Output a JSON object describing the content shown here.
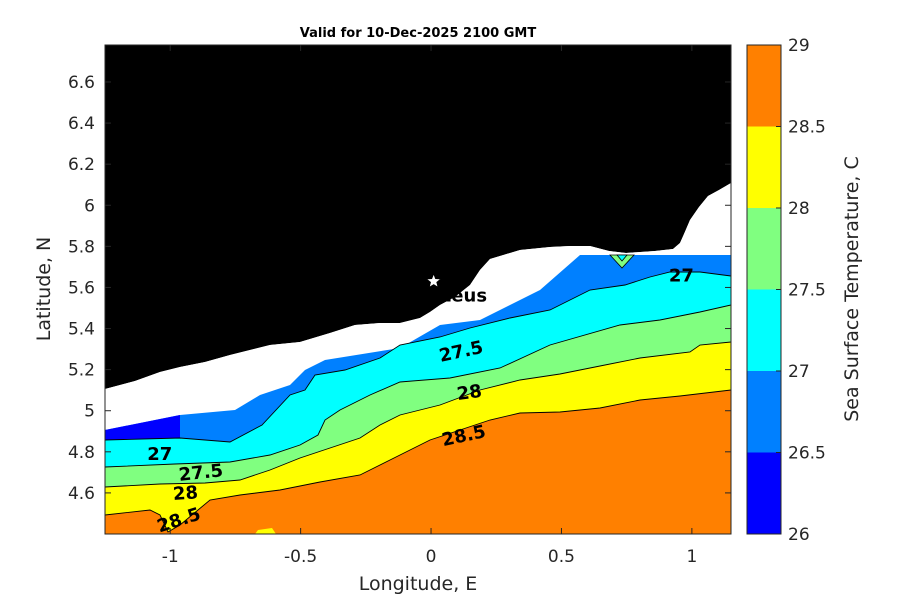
{
  "chart_data": {
    "type": "contour",
    "title": "Valid for 10-Dec-2025 2100 GMT",
    "xlabel": "Longitude, E",
    "ylabel": "Latitude, N",
    "colorbar_label": "Sea Surface Temperature, C",
    "xlim": [
      -1.25,
      1.15
    ],
    "ylim": [
      4.4,
      6.78
    ],
    "xticks": [
      -1,
      -0.5,
      0,
      0.5,
      1
    ],
    "xtick_labels": [
      "-1",
      "-0.5",
      "0",
      "0.5",
      "1"
    ],
    "yticks": [
      4.6,
      4.8,
      5,
      5.2,
      5.4,
      5.6,
      5.8,
      6,
      6.2,
      6.4,
      6.6
    ],
    "ytick_labels": [
      "4.6",
      "4.8",
      "5",
      "5.2",
      "5.4",
      "5.6",
      "5.8",
      "6",
      "6.2",
      "6.4",
      "6.6"
    ],
    "colorbar_range": [
      26,
      29
    ],
    "colorbar_ticks": [
      26,
      26.5,
      27,
      27.5,
      28,
      28.5,
      29
    ],
    "colorbar_tick_labels": [
      "26",
      "26.5",
      "27",
      "27.5",
      "28",
      "28.5",
      "29"
    ],
    "levels": [
      {
        "min": 26,
        "max": 26.5,
        "color": "#0000ff"
      },
      {
        "min": 26.5,
        "max": 27,
        "color": "#0080ff"
      },
      {
        "min": 27,
        "max": 27.5,
        "color": "#00ffff"
      },
      {
        "min": 27.5,
        "max": 28,
        "color": "#80ff80"
      },
      {
        "min": 28,
        "max": 28.5,
        "color": "#ffff00"
      },
      {
        "min": 28.5,
        "max": 29,
        "color": "#ff8000"
      }
    ],
    "land_color": "#000000",
    "nodata_color": "#ffffff",
    "station": {
      "name": "Proteus",
      "lon": 0.01,
      "lat": 5.63,
      "marker": "star"
    },
    "contour_labels": [
      {
        "text": "27",
        "lon": -1.04,
        "lat": 4.76,
        "angle": 0
      },
      {
        "text": "27.5",
        "lon": -0.88,
        "lat": 4.67,
        "angle": -6
      },
      {
        "text": "28",
        "lon": -0.94,
        "lat": 4.57,
        "angle": -4
      },
      {
        "text": "28.5",
        "lon": -0.96,
        "lat": 4.44,
        "angle": -18
      },
      {
        "text": "27.5",
        "lon": 0.12,
        "lat": 5.26,
        "angle": -12
      },
      {
        "text": "28",
        "lon": 0.15,
        "lat": 5.06,
        "angle": -8
      },
      {
        "text": "28.5",
        "lon": 0.13,
        "lat": 4.85,
        "angle": -12
      },
      {
        "text": "27",
        "lon": 0.96,
        "lat": 5.63,
        "angle": 0
      }
    ]
  }
}
